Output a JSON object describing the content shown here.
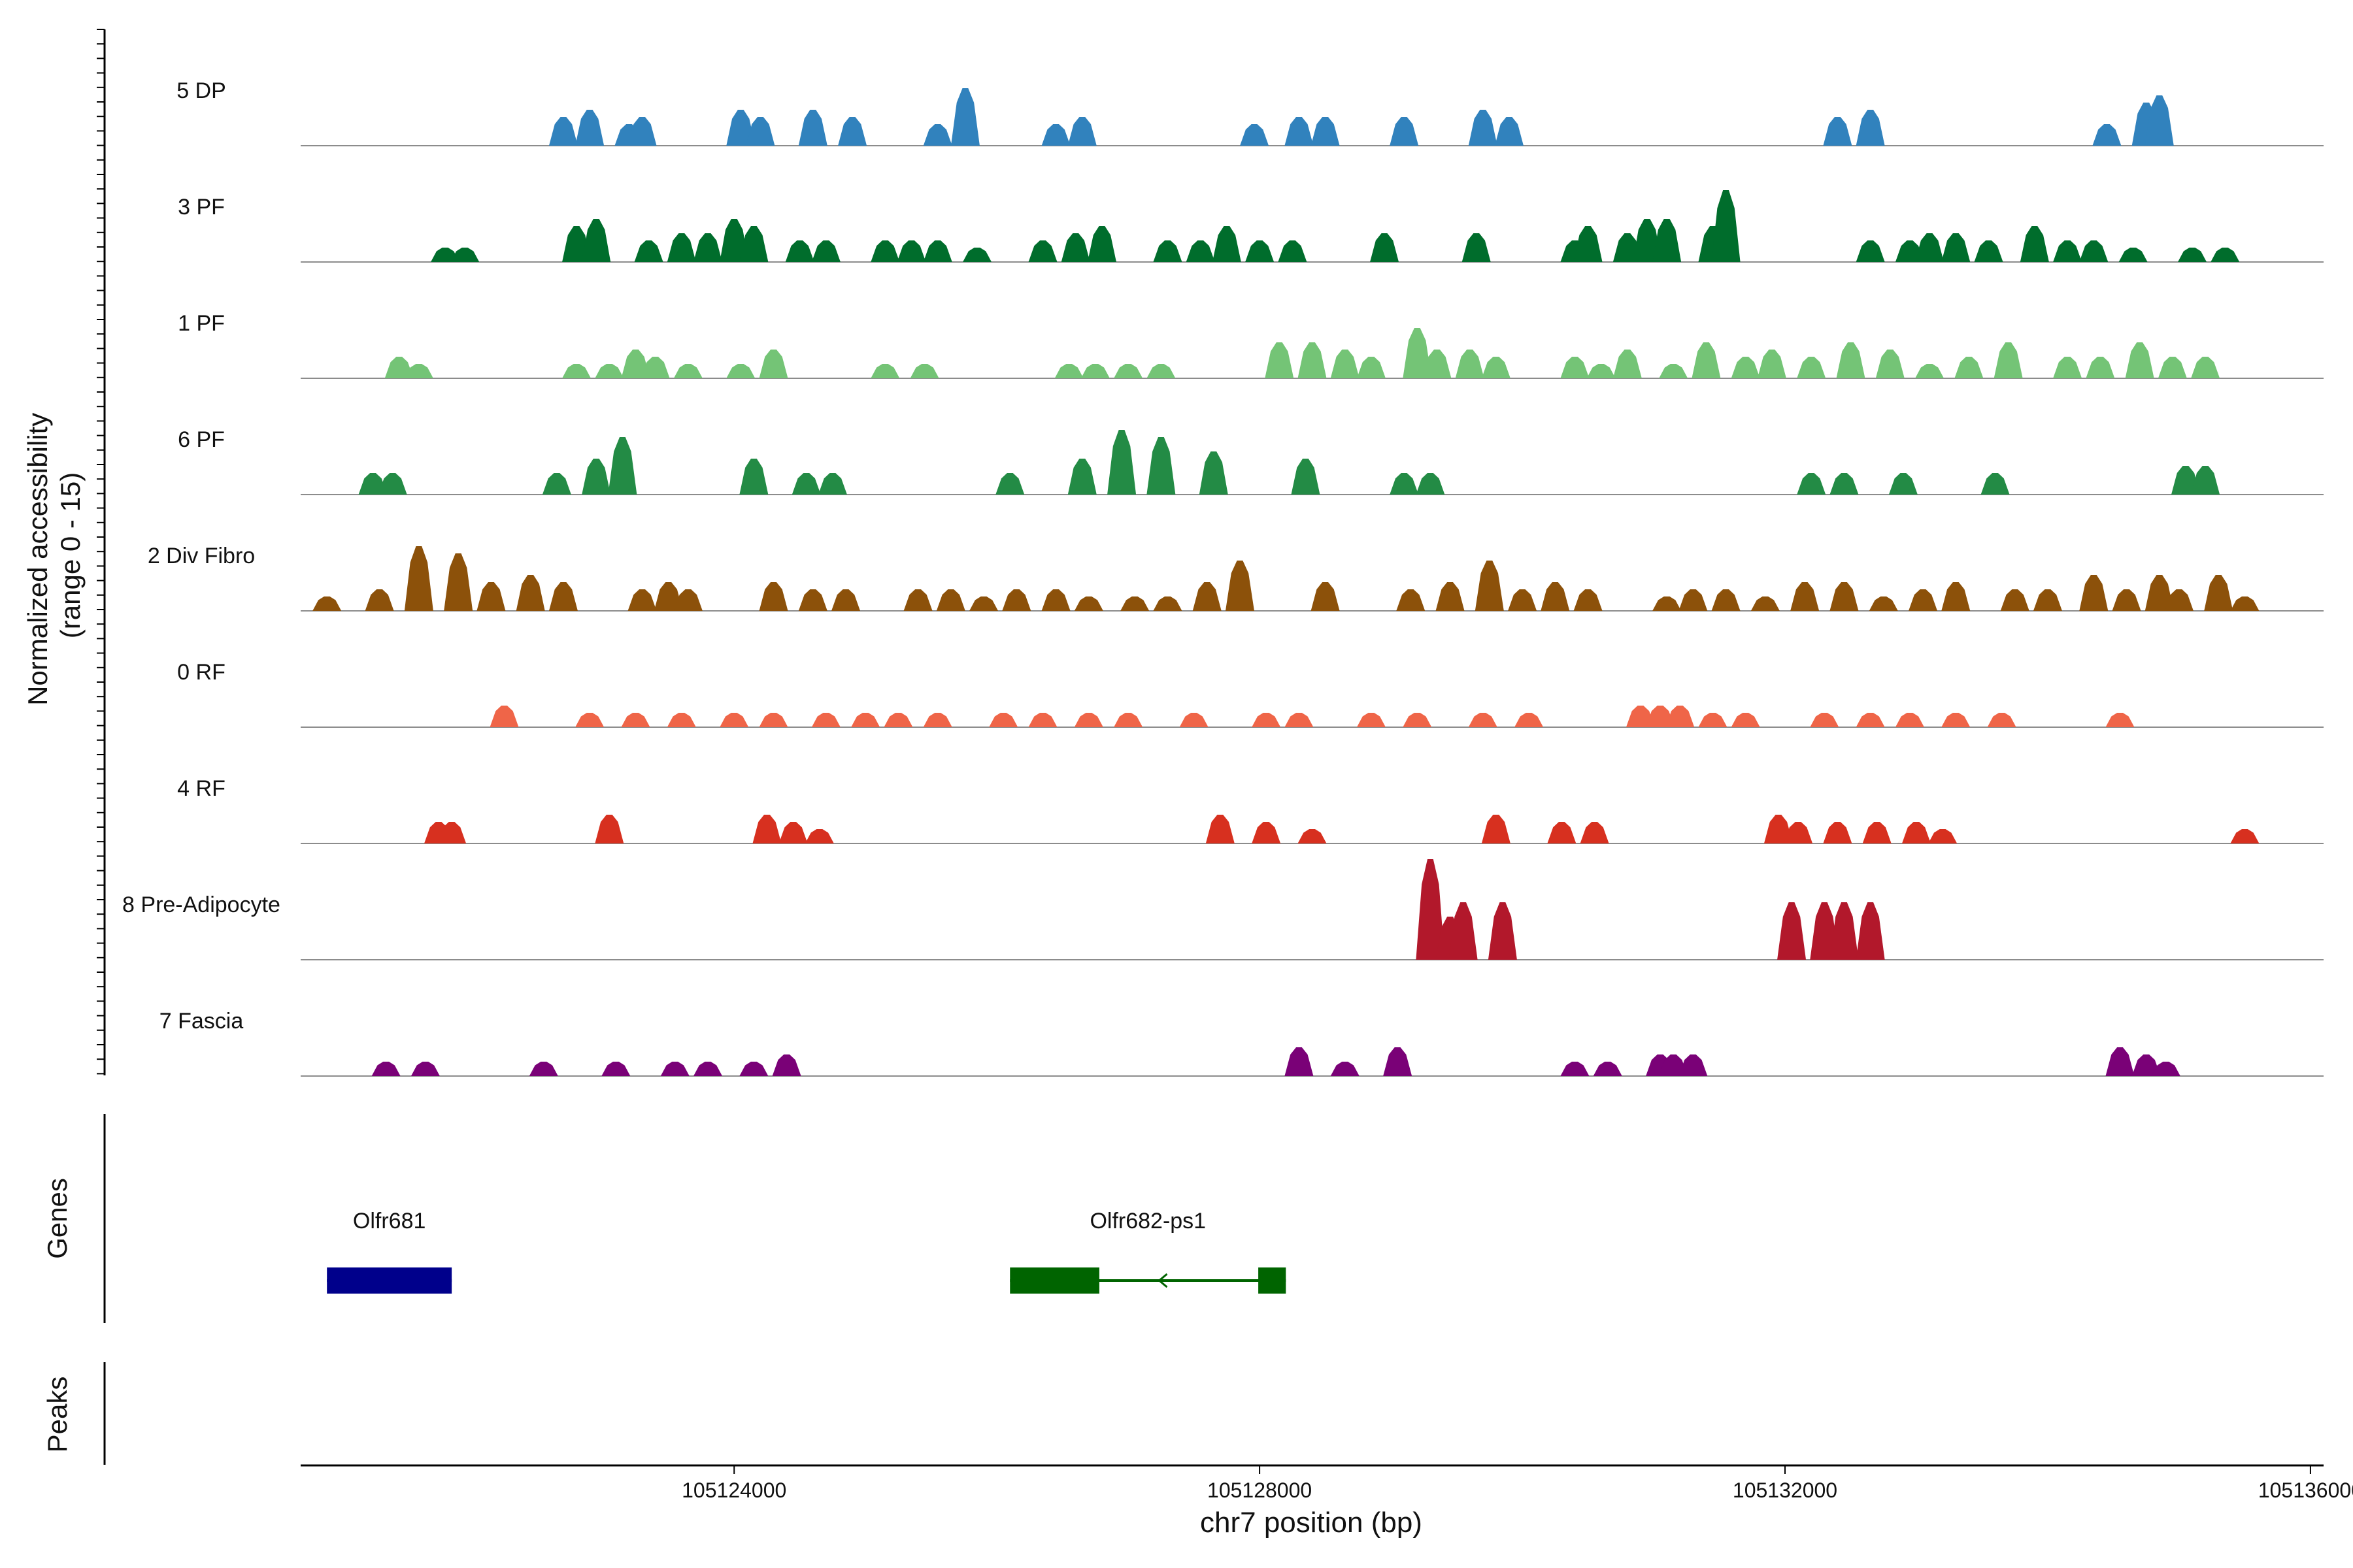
{
  "chart_data": {
    "type": "area",
    "title": "",
    "ylabel_line1": "Normalized accessibility",
    "ylabel_line2": "(range 0 - 15)",
    "xlabel": "chr7 position (bp)",
    "xlim": [
      105120700,
      105136100
    ],
    "ylim": [
      0,
      15
    ],
    "x_ticks": [
      105124000,
      105128000,
      105132000,
      105136000
    ],
    "x_tick_labels": [
      "105124000",
      "105128000",
      "105132000",
      "105136000"
    ],
    "series": [
      {
        "name": "5 DP",
        "color": "#3182bd",
        "peaks": [
          [
            105122700,
            4
          ],
          [
            105122900,
            5
          ],
          [
            105123200,
            3
          ],
          [
            105123300,
            4
          ],
          [
            105124050,
            5
          ],
          [
            105124200,
            4
          ],
          [
            105124600,
            5
          ],
          [
            105124900,
            4
          ],
          [
            105125550,
            3
          ],
          [
            105125760,
            8
          ],
          [
            105126450,
            3
          ],
          [
            105126650,
            4
          ],
          [
            105127960,
            3
          ],
          [
            105128300,
            4
          ],
          [
            105128500,
            4
          ],
          [
            105129100,
            4
          ],
          [
            105129700,
            5
          ],
          [
            105129900,
            4
          ],
          [
            105132400,
            4
          ],
          [
            105132650,
            5
          ],
          [
            105134450,
            3
          ],
          [
            105134750,
            6
          ],
          [
            105134850,
            7
          ]
        ]
      },
      {
        "name": "3 PF",
        "color": "#006d2c",
        "peaks": [
          [
            105121800,
            2
          ],
          [
            105121950,
            2
          ],
          [
            105122800,
            5
          ],
          [
            105122950,
            6
          ],
          [
            105123350,
            3
          ],
          [
            105123600,
            4
          ],
          [
            105123800,
            4
          ],
          [
            105124000,
            6
          ],
          [
            105124150,
            5
          ],
          [
            105124500,
            3
          ],
          [
            105124700,
            3
          ],
          [
            105125150,
            3
          ],
          [
            105125350,
            3
          ],
          [
            105125550,
            3
          ],
          [
            105125850,
            2
          ],
          [
            105126350,
            3
          ],
          [
            105126600,
            4
          ],
          [
            105126800,
            5
          ],
          [
            105127300,
            3
          ],
          [
            105127550,
            3
          ],
          [
            105127750,
            5
          ],
          [
            105128000,
            3
          ],
          [
            105128250,
            3
          ],
          [
            105128950,
            4
          ],
          [
            105129650,
            4
          ],
          [
            105130400,
            3
          ],
          [
            105130500,
            5
          ],
          [
            105130800,
            4
          ],
          [
            105130950,
            6
          ],
          [
            105131100,
            6
          ],
          [
            105131450,
            5
          ],
          [
            105131550,
            10
          ],
          [
            105132650,
            3
          ],
          [
            105132950,
            3
          ],
          [
            105133100,
            4
          ],
          [
            105133300,
            4
          ],
          [
            105133550,
            3
          ],
          [
            105133900,
            5
          ],
          [
            105134150,
            3
          ],
          [
            105134350,
            3
          ],
          [
            105134650,
            2
          ],
          [
            105135100,
            2
          ],
          [
            105135350,
            2
          ]
        ]
      },
      {
        "name": "1 PF",
        "color": "#74c476",
        "peaks": [
          [
            105121450,
            3
          ],
          [
            105121600,
            2
          ],
          [
            105122800,
            2
          ],
          [
            105123050,
            2
          ],
          [
            105123250,
            4
          ],
          [
            105123400,
            3
          ],
          [
            105123650,
            2
          ],
          [
            105124050,
            2
          ],
          [
            105124300,
            4
          ],
          [
            105125150,
            2
          ],
          [
            105125450,
            2
          ],
          [
            105126550,
            2
          ],
          [
            105126750,
            2
          ],
          [
            105127000,
            2
          ],
          [
            105127250,
            2
          ],
          [
            105128150,
            5
          ],
          [
            105128400,
            5
          ],
          [
            105128650,
            4
          ],
          [
            105128850,
            3
          ],
          [
            105129200,
            7
          ],
          [
            105129350,
            4
          ],
          [
            105129600,
            4
          ],
          [
            105129800,
            3
          ],
          [
            105130400,
            3
          ],
          [
            105130600,
            2
          ],
          [
            105130800,
            4
          ],
          [
            105131150,
            2
          ],
          [
            105131400,
            5
          ],
          [
            105131700,
            3
          ],
          [
            105131900,
            4
          ],
          [
            105132200,
            3
          ],
          [
            105132500,
            5
          ],
          [
            105132800,
            4
          ],
          [
            105133100,
            2
          ],
          [
            105133400,
            3
          ],
          [
            105133700,
            5
          ],
          [
            105134150,
            3
          ],
          [
            105134400,
            3
          ],
          [
            105134700,
            5
          ],
          [
            105134950,
            3
          ],
          [
            105135200,
            3
          ]
        ]
      },
      {
        "name": "6 PF",
        "color": "#238b45",
        "peaks": [
          [
            105121250,
            3
          ],
          [
            105121400,
            3
          ],
          [
            105122650,
            3
          ],
          [
            105122950,
            5
          ],
          [
            105123150,
            8
          ],
          [
            105124150,
            5
          ],
          [
            105124550,
            3
          ],
          [
            105124750,
            3
          ],
          [
            105126100,
            3
          ],
          [
            105126650,
            5
          ],
          [
            105126950,
            9
          ],
          [
            105127250,
            8
          ],
          [
            105127650,
            6
          ],
          [
            105128350,
            5
          ],
          [
            105129100,
            3
          ],
          [
            105129300,
            3
          ],
          [
            105132200,
            3
          ],
          [
            105132450,
            3
          ],
          [
            105132900,
            3
          ],
          [
            105133600,
            3
          ],
          [
            105135050,
            4
          ],
          [
            105135200,
            4
          ]
        ]
      },
      {
        "name": "2 Div Fibro",
        "color": "#8c510a",
        "peaks": [
          [
            105120900,
            2
          ],
          [
            105121300,
            3
          ],
          [
            105121600,
            9
          ],
          [
            105121900,
            8
          ],
          [
            105122150,
            4
          ],
          [
            105122450,
            5
          ],
          [
            105122700,
            4
          ],
          [
            105123300,
            3
          ],
          [
            105123500,
            4
          ],
          [
            105123650,
            3
          ],
          [
            105124300,
            4
          ],
          [
            105124600,
            3
          ],
          [
            105124850,
            3
          ],
          [
            105125400,
            3
          ],
          [
            105125650,
            3
          ],
          [
            105125900,
            2
          ],
          [
            105126150,
            3
          ],
          [
            105126450,
            3
          ],
          [
            105126700,
            2
          ],
          [
            105127050,
            2
          ],
          [
            105127300,
            2
          ],
          [
            105127600,
            4
          ],
          [
            105127850,
            7
          ],
          [
            105128500,
            4
          ],
          [
            105129150,
            3
          ],
          [
            105129450,
            4
          ],
          [
            105129750,
            7
          ],
          [
            105130000,
            3
          ],
          [
            105130250,
            4
          ],
          [
            105130500,
            3
          ],
          [
            105131100,
            2
          ],
          [
            105131300,
            3
          ],
          [
            105131550,
            3
          ],
          [
            105131850,
            2
          ],
          [
            105132150,
            4
          ],
          [
            105132450,
            4
          ],
          [
            105132750,
            2
          ],
          [
            105133050,
            3
          ],
          [
            105133300,
            4
          ],
          [
            105133750,
            3
          ],
          [
            105134000,
            3
          ],
          [
            105134350,
            5
          ],
          [
            105134600,
            3
          ],
          [
            105134850,
            5
          ],
          [
            105135000,
            3
          ],
          [
            105135300,
            5
          ],
          [
            105135500,
            2
          ]
        ]
      },
      {
        "name": "0 RF",
        "color": "#ef6548",
        "peaks": [
          [
            105122250,
            3
          ],
          [
            105122900,
            2
          ],
          [
            105123250,
            2
          ],
          [
            105123600,
            2
          ],
          [
            105124000,
            2
          ],
          [
            105124300,
            2
          ],
          [
            105124700,
            2
          ],
          [
            105125000,
            2
          ],
          [
            105125250,
            2
          ],
          [
            105125550,
            2
          ],
          [
            105126050,
            2
          ],
          [
            105126350,
            2
          ],
          [
            105126700,
            2
          ],
          [
            105127000,
            2
          ],
          [
            105127500,
            2
          ],
          [
            105128050,
            2
          ],
          [
            105128300,
            2
          ],
          [
            105128850,
            2
          ],
          [
            105129200,
            2
          ],
          [
            105129700,
            2
          ],
          [
            105130050,
            2
          ],
          [
            105130900,
            3
          ],
          [
            105131050,
            3
          ],
          [
            105131200,
            3
          ],
          [
            105131450,
            2
          ],
          [
            105131700,
            2
          ],
          [
            105132300,
            2
          ],
          [
            105132650,
            2
          ],
          [
            105132950,
            2
          ],
          [
            105133300,
            2
          ],
          [
            105133650,
            2
          ],
          [
            105134550,
            2
          ]
        ]
      },
      {
        "name": "4 RF",
        "color": "#d7301f",
        "peaks": [
          [
            105121750,
            3
          ],
          [
            105121850,
            3
          ],
          [
            105123050,
            4
          ],
          [
            105124250,
            4
          ],
          [
            105124450,
            3
          ],
          [
            105124650,
            2
          ],
          [
            105127700,
            4
          ],
          [
            105128050,
            3
          ],
          [
            105128400,
            2
          ],
          [
            105129800,
            4
          ],
          [
            105130300,
            3
          ],
          [
            105130550,
            3
          ],
          [
            105131950,
            4
          ],
          [
            105132100,
            3
          ],
          [
            105132400,
            3
          ],
          [
            105132700,
            3
          ],
          [
            105133000,
            3
          ],
          [
            105133200,
            2
          ],
          [
            105135500,
            2
          ]
        ]
      },
      {
        "name": "8 Pre-Adipocyte",
        "color": "#b2182b",
        "peaks": [
          [
            105129300,
            14
          ],
          [
            105129450,
            6
          ],
          [
            105129550,
            8
          ],
          [
            105129850,
            8
          ],
          [
            105132050,
            8
          ],
          [
            105132300,
            8
          ],
          [
            105132450,
            8
          ],
          [
            105132650,
            8
          ]
        ]
      },
      {
        "name": "7 Fascia",
        "color": "#7a0177",
        "peaks": [
          [
            105121350,
            2
          ],
          [
            105121650,
            2
          ],
          [
            105122550,
            2
          ],
          [
            105123100,
            2
          ],
          [
            105123550,
            2
          ],
          [
            105123800,
            2
          ],
          [
            105124150,
            2
          ],
          [
            105124400,
            3
          ],
          [
            105128300,
            4
          ],
          [
            105128650,
            2
          ],
          [
            105129050,
            4
          ],
          [
            105130400,
            2
          ],
          [
            105130650,
            2
          ],
          [
            105131050,
            3
          ],
          [
            105131150,
            3
          ],
          [
            105131300,
            3
          ],
          [
            105134550,
            4
          ],
          [
            105134750,
            3
          ],
          [
            105134900,
            2
          ]
        ]
      }
    ],
    "genes_label": "Genes",
    "genes": [
      {
        "name": "Olfr681",
        "color": "#00008b",
        "exons": [
          [
            105120900,
            105121850
          ]
        ],
        "strand": "+"
      },
      {
        "name": "Olfr682-ps1",
        "color": "#006400",
        "exons": [
          [
            105126100,
            105126780
          ],
          [
            105127990,
            105128200
          ]
        ],
        "strand": "-"
      }
    ],
    "peaks_label": "Peaks"
  }
}
